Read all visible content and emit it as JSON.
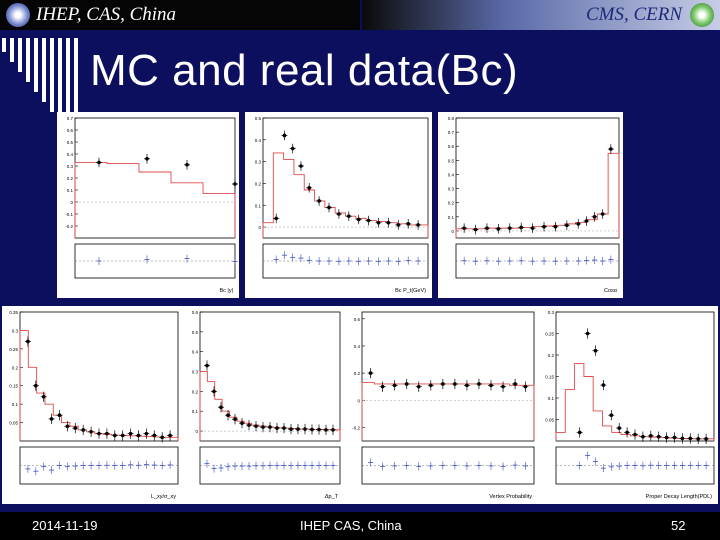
{
  "header": {
    "left_text": "IHEP, CAS, China",
    "right_text": "CMS, CERN",
    "left_logo_icon": "ihep-logo-icon",
    "right_logo_icon": "cern-logo-icon"
  },
  "slide": {
    "title": "MC and real data(Bc)"
  },
  "footer": {
    "date": "2014-11-19",
    "center": "IHEP CAS, China",
    "page": "52"
  },
  "colors": {
    "background": "#0c0f5e",
    "mc": "#e04a4a",
    "data": "#000000",
    "ratio": "#3b4fc4"
  },
  "chart_data": [
    {
      "type": "scatter",
      "xlabel": "Bc |y|",
      "ylim": [
        -0.3,
        0.7
      ],
      "yticks": [
        "0.7",
        "0.6",
        "0.5",
        "0.4",
        "0.3",
        "0.2",
        "0.1",
        "0",
        "-0.1",
        "-0.2"
      ],
      "x": [
        0.15,
        0.45,
        0.7,
        1.0,
        1.3
      ],
      "values": [
        0.33,
        0.36,
        0.31,
        0.15,
        0.11
      ],
      "mc": [
        0.33,
        0.32,
        0.25,
        0.16,
        0.07
      ]
    },
    {
      "type": "scatter",
      "xlabel": "Bc P_t(GeV)",
      "ylim": [
        -0.05,
        0.5
      ],
      "yticks": [
        "0.5",
        "0.4",
        "0.3",
        "0.2",
        "0.1",
        "0"
      ],
      "x": [
        0.08,
        0.13,
        0.18,
        0.23,
        0.28,
        0.34,
        0.4,
        0.46,
        0.52,
        0.58,
        0.64,
        0.7,
        0.76,
        0.82,
        0.88,
        0.94
      ],
      "values": [
        0.04,
        0.42,
        0.36,
        0.28,
        0.18,
        0.12,
        0.09,
        0.06,
        0.05,
        0.035,
        0.03,
        0.02,
        0.02,
        0.01,
        0.015,
        0.01
      ],
      "mc": [
        0.02,
        0.34,
        0.31,
        0.24,
        0.17,
        0.12,
        0.09,
        0.065,
        0.05,
        0.04,
        0.03,
        0.025,
        0.02,
        0.015,
        0.01,
        0.01
      ]
    },
    {
      "type": "scatter",
      "xlabel": "Cosα",
      "ylim": [
        -0.05,
        0.8
      ],
      "yticks": [
        "0.8",
        "0.7",
        "0.6",
        "0.5",
        "0.4",
        "0.3",
        "0.2",
        "0.1",
        "0"
      ],
      "x": [
        0.05,
        0.12,
        0.19,
        0.26,
        0.33,
        0.4,
        0.47,
        0.54,
        0.61,
        0.68,
        0.75,
        0.8,
        0.85,
        0.9,
        0.95
      ],
      "values": [
        0.02,
        0.01,
        0.02,
        0.015,
        0.02,
        0.025,
        0.02,
        0.03,
        0.03,
        0.04,
        0.05,
        0.07,
        0.1,
        0.12,
        0.58
      ],
      "mc": [
        0.015,
        0.015,
        0.015,
        0.02,
        0.02,
        0.02,
        0.025,
        0.03,
        0.035,
        0.04,
        0.05,
        0.06,
        0.08,
        0.12,
        0.55
      ]
    },
    {
      "type": "scatter",
      "xlabel": "L_xy/σ_xy",
      "ylim": [
        0,
        0.35
      ],
      "yticks": [
        "0.35",
        "0.3",
        "0.25",
        "0.2",
        "0.15",
        "0.1",
        "0.05"
      ],
      "x": [
        0.05,
        0.1,
        0.15,
        0.2,
        0.25,
        0.3,
        0.35,
        0.4,
        0.45,
        0.5,
        0.55,
        0.6,
        0.65,
        0.7,
        0.75,
        0.8,
        0.85,
        0.9,
        0.95
      ],
      "values": [
        0.27,
        0.15,
        0.12,
        0.06,
        0.07,
        0.04,
        0.035,
        0.03,
        0.025,
        0.02,
        0.02,
        0.015,
        0.015,
        0.02,
        0.015,
        0.02,
        0.015,
        0.01,
        0.015
      ],
      "mc": [
        0.3,
        0.2,
        0.13,
        0.1,
        0.07,
        0.05,
        0.04,
        0.03,
        0.025,
        0.02,
        0.018,
        0.016,
        0.015,
        0.014,
        0.013,
        0.012,
        0.011,
        0.01,
        0.01
      ]
    },
    {
      "type": "scatter",
      "xlabel": "Δp_T",
      "ylim": [
        -0.05,
        0.6
      ],
      "yticks": [
        "0.6",
        "0.5",
        "0.4",
        "0.3",
        "0.2",
        "0.1",
        "0"
      ],
      "x": [
        0.05,
        0.1,
        0.15,
        0.2,
        0.25,
        0.3,
        0.35,
        0.4,
        0.45,
        0.5,
        0.55,
        0.6,
        0.65,
        0.7,
        0.75,
        0.8,
        0.85,
        0.9,
        0.95
      ],
      "values": [
        0.33,
        0.2,
        0.12,
        0.08,
        0.06,
        0.04,
        0.03,
        0.025,
        0.02,
        0.02,
        0.015,
        0.015,
        0.01,
        0.01,
        0.01,
        0.008,
        0.008,
        0.006,
        0.006
      ],
      "mc": [
        0.3,
        0.25,
        0.16,
        0.1,
        0.07,
        0.05,
        0.04,
        0.03,
        0.025,
        0.02,
        0.017,
        0.015,
        0.013,
        0.011,
        0.01,
        0.009,
        0.008,
        0.007,
        0.006
      ]
    },
    {
      "type": "scatter",
      "xlabel": "Vertex Probability",
      "ylim": [
        -0.3,
        0.65
      ],
      "yticks": [
        "0.6",
        "0.4",
        "0.2",
        "0",
        "-0.2"
      ],
      "x": [
        0.05,
        0.12,
        0.19,
        0.26,
        0.33,
        0.4,
        0.47,
        0.54,
        0.61,
        0.68,
        0.75,
        0.82,
        0.89,
        0.95
      ],
      "values": [
        0.2,
        0.1,
        0.11,
        0.12,
        0.1,
        0.11,
        0.12,
        0.12,
        0.11,
        0.12,
        0.11,
        0.1,
        0.12,
        0.1
      ],
      "mc": [
        0.13,
        0.12,
        0.12,
        0.12,
        0.12,
        0.12,
        0.12,
        0.12,
        0.12,
        0.12,
        0.12,
        0.12,
        0.11,
        0.11
      ]
    },
    {
      "type": "scatter",
      "xlabel": "Proper Decay Length(PDL)",
      "ylim": [
        0,
        0.3
      ],
      "yticks": [
        "0.3",
        "0.25",
        "0.2",
        "0.15",
        "0.1",
        "0.05"
      ],
      "x": [
        0.15,
        0.2,
        0.25,
        0.3,
        0.35,
        0.4,
        0.45,
        0.5,
        0.55,
        0.6,
        0.65,
        0.7,
        0.75,
        0.8,
        0.85,
        0.9,
        0.95
      ],
      "values": [
        0.02,
        0.25,
        0.21,
        0.13,
        0.06,
        0.03,
        0.02,
        0.015,
        0.01,
        0.012,
        0.01,
        0.008,
        0.008,
        0.006,
        0.006,
        0.005,
        0.005
      ],
      "mc": [
        0.02,
        0.12,
        0.18,
        0.15,
        0.07,
        0.035,
        0.02,
        0.015,
        0.012,
        0.01,
        0.009,
        0.008,
        0.007,
        0.006,
        0.005,
        0.005,
        0.005
      ]
    }
  ]
}
